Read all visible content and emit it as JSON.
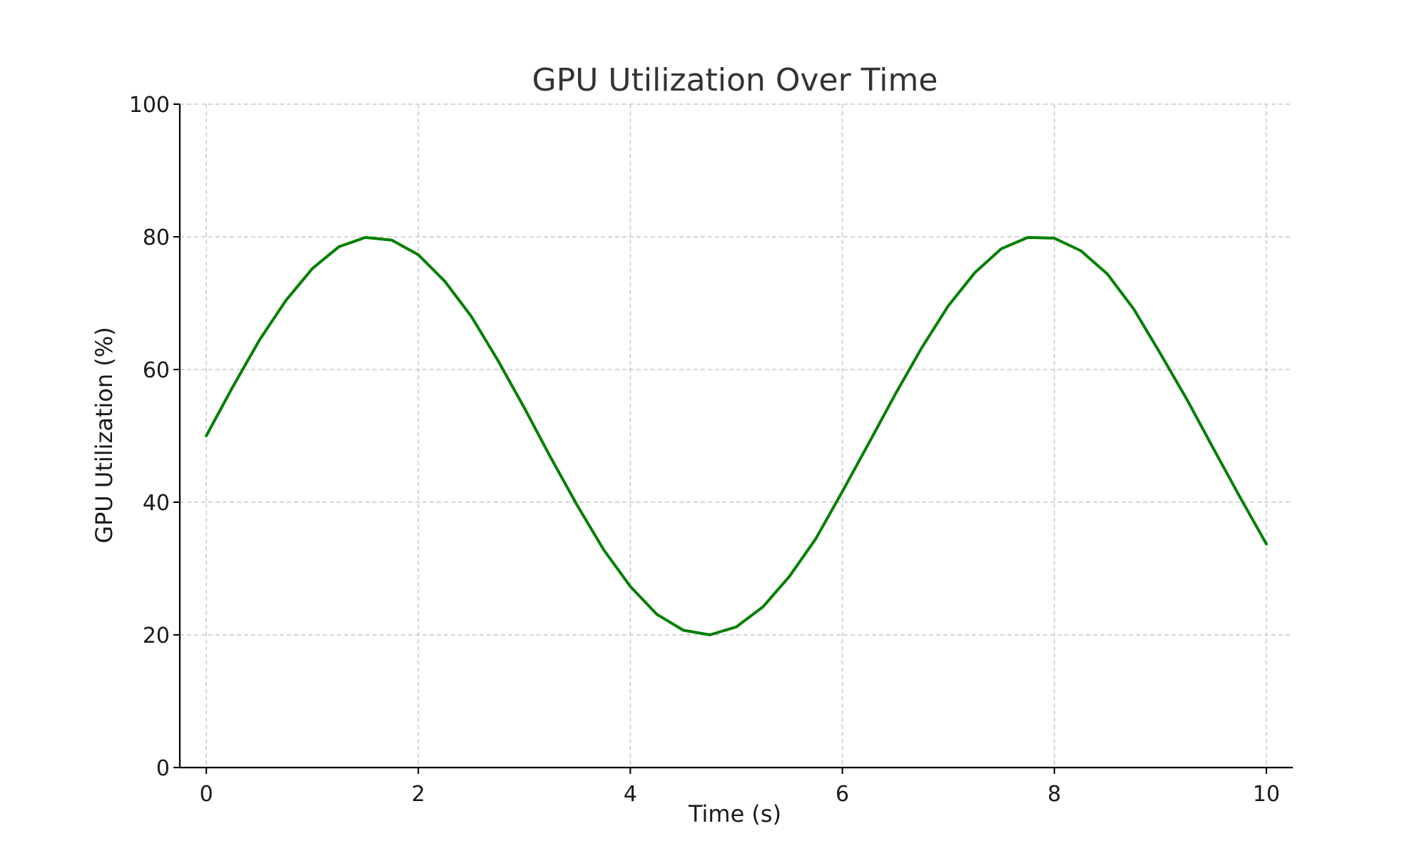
{
  "chart_data": {
    "type": "line",
    "title": "GPU Utilization Over Time",
    "xlabel": "Time (s)",
    "ylabel": "GPU Utilization (%)",
    "xlim": [
      -0.25,
      10.25
    ],
    "ylim": [
      0,
      100
    ],
    "xticks": [
      0,
      2,
      4,
      6,
      8,
      10
    ],
    "yticks": [
      0,
      20,
      40,
      60,
      80,
      100
    ],
    "grid": true,
    "colors": {
      "line": "#008000",
      "grid": "#c8c8c8",
      "axes": "#000000"
    },
    "series": [
      {
        "x": [
          0,
          0.25,
          0.5,
          0.75,
          1,
          1.25,
          1.5,
          1.75,
          2,
          2.25,
          2.5,
          2.75,
          3,
          3.25,
          3.5,
          3.75,
          4,
          4.25,
          4.5,
          4.75,
          5,
          5.25,
          5.5,
          5.75,
          6,
          6.25,
          6.5,
          6.75,
          7,
          7.25,
          7.5,
          7.75,
          8,
          8.25,
          8.5,
          8.75,
          9,
          9.25,
          9.5,
          9.75,
          10
        ],
        "y": [
          50,
          57.4,
          64.4,
          70.4,
          75.2,
          78.5,
          79.9,
          79.5,
          77.3,
          73.3,
          68,
          61.4,
          54.2,
          46.7,
          39.5,
          32.8,
          27.3,
          23.1,
          20.7,
          20,
          21.2,
          24.2,
          28.8,
          34.5,
          41.6,
          48.9,
          56.3,
          63.3,
          69.6,
          74.6,
          78.2,
          79.9,
          79.8,
          77.9,
          74.4,
          69.1,
          62.4,
          55.5,
          48.1,
          40.8,
          33.7
        ]
      }
    ]
  }
}
